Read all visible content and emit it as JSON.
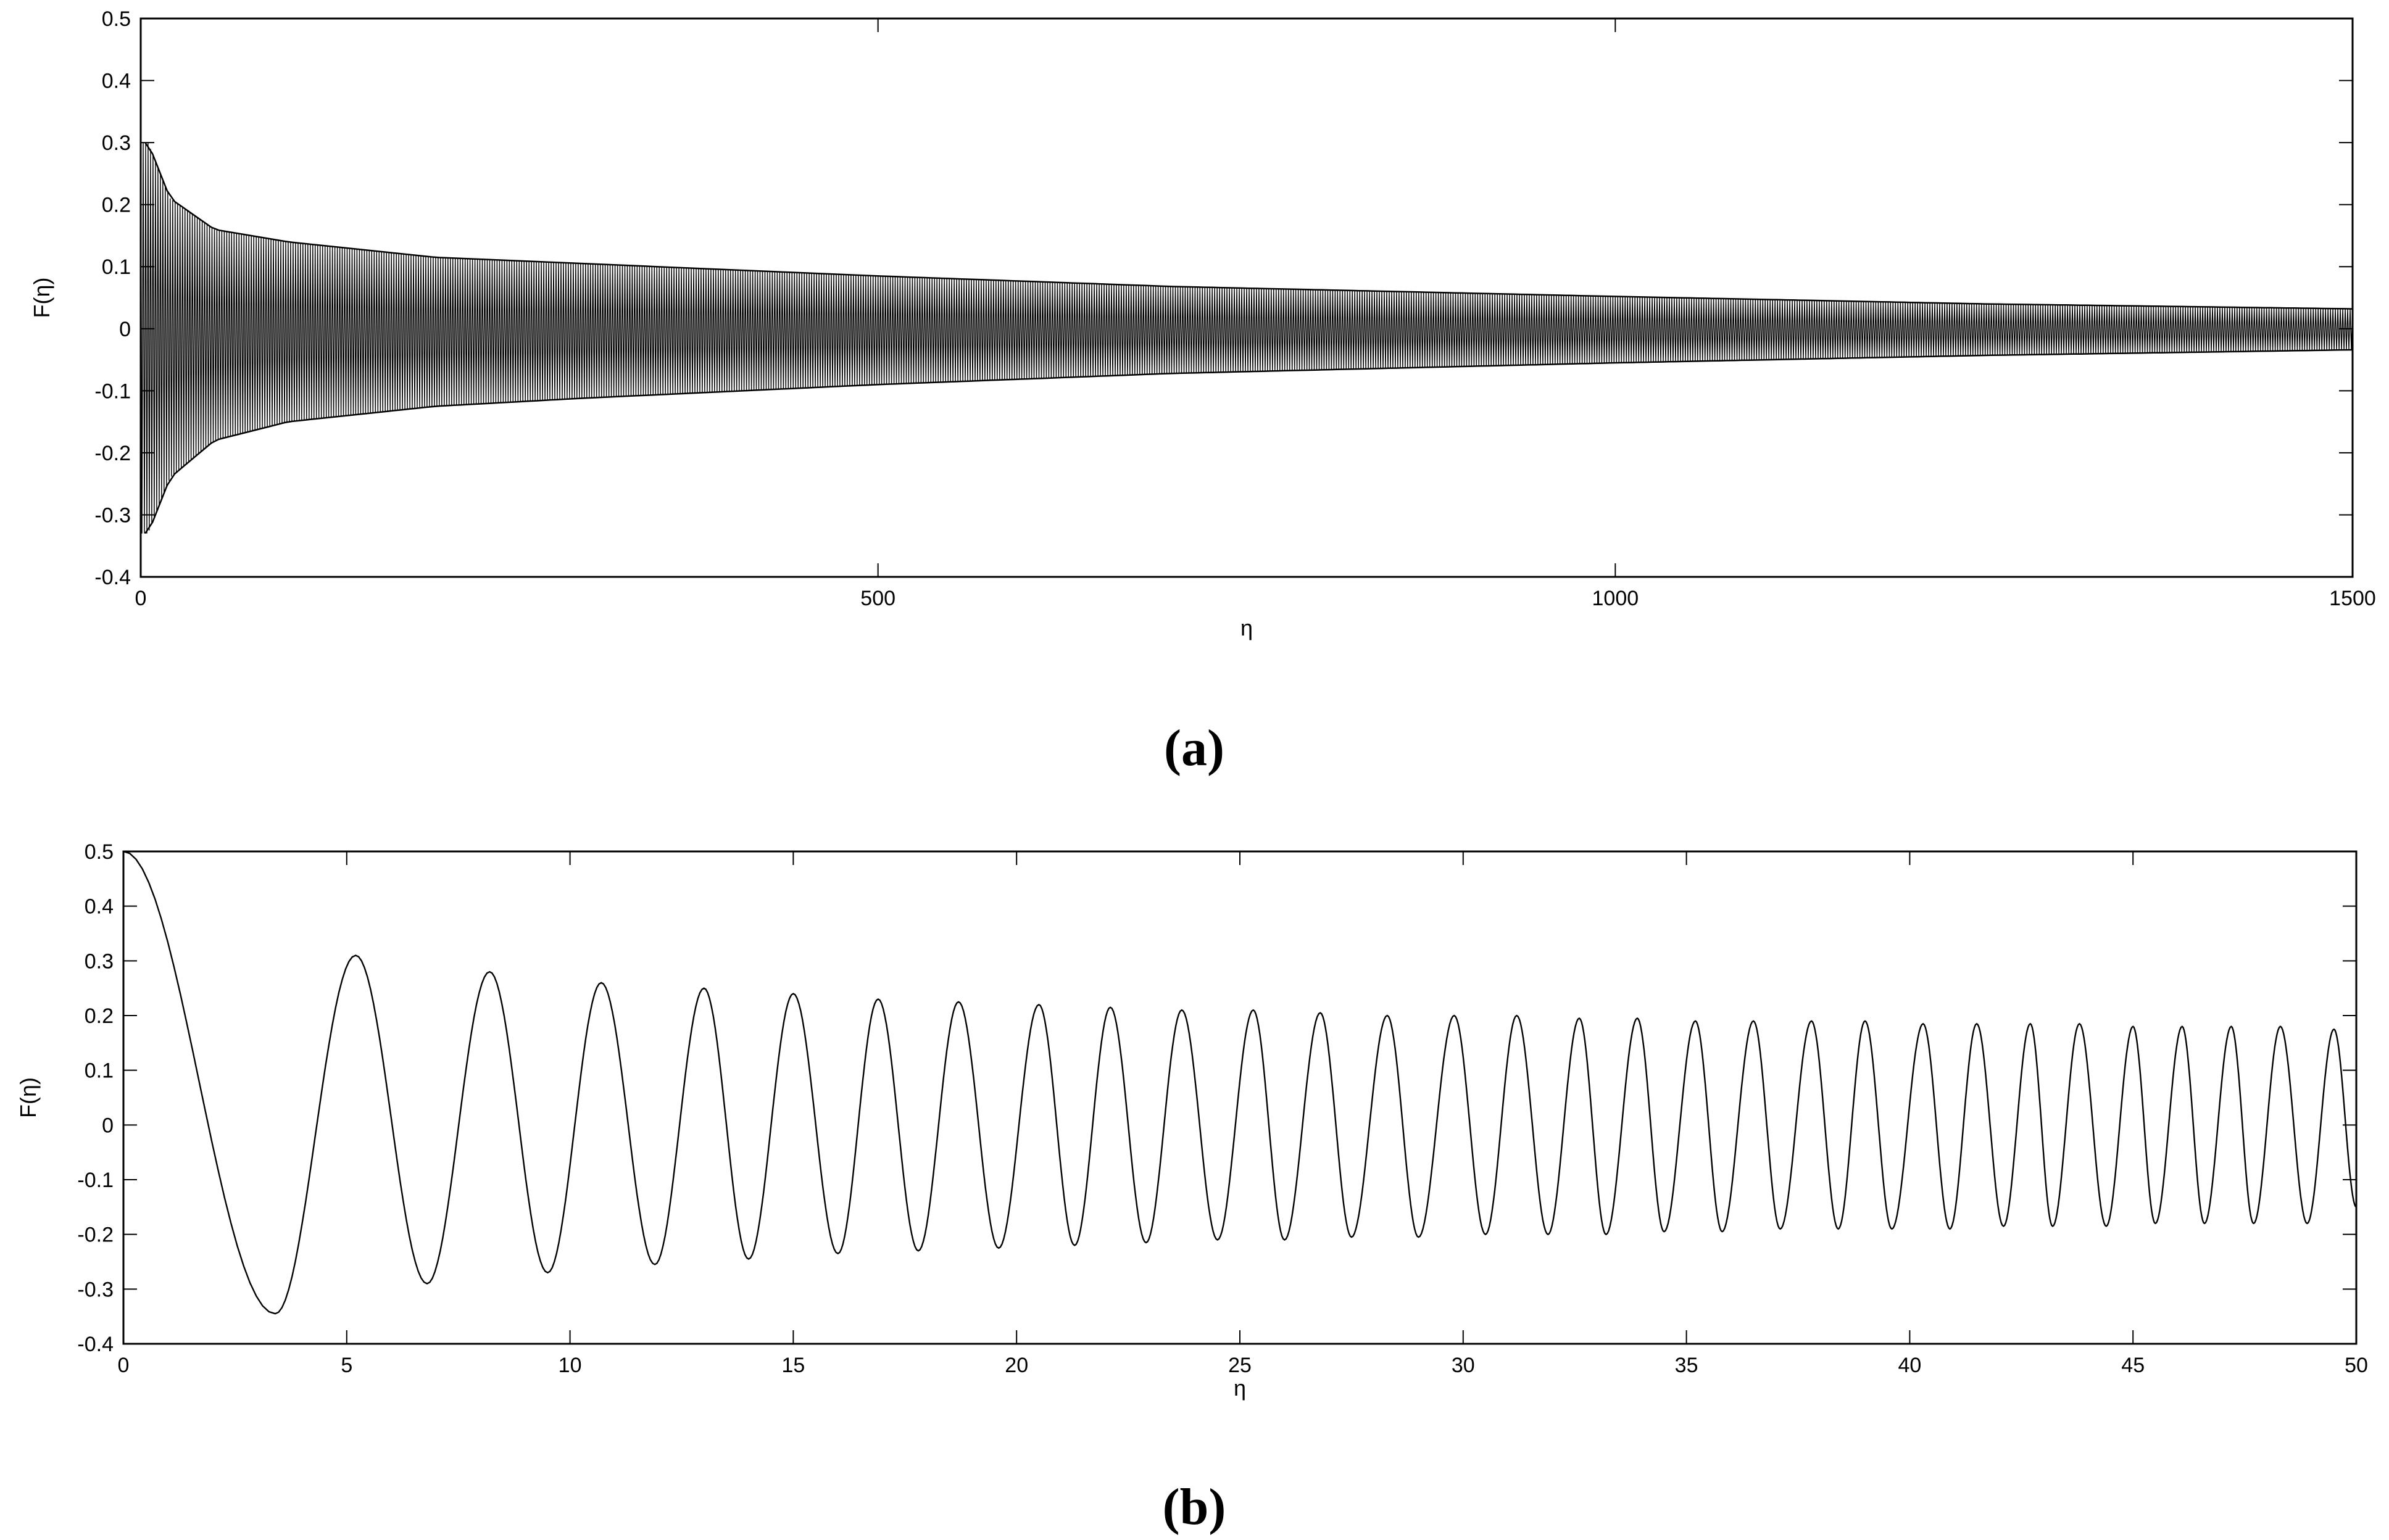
{
  "chart_data": [
    {
      "panel": "(a)",
      "type": "line",
      "xlabel": "η",
      "ylabel": "F(η)",
      "xlim": [
        0,
        1500
      ],
      "ylim": [
        -0.4,
        0.5
      ],
      "xticks": [
        "0",
        "500",
        "1000",
        "1500"
      ],
      "yticks": [
        "0.5",
        "0.4",
        "0.3",
        "0.2",
        "0.1",
        "0",
        "-0.1",
        "-0.2",
        "-0.3",
        "-0.4"
      ],
      "grid": false,
      "series": [
        {
          "description": "rapidly oscillating signal with decaying envelope",
          "start_value": 0.38,
          "envelope_upper": {
            "x": [
              5,
              20,
              50,
              100,
              200,
              300,
              500,
              700,
              1000,
              1250,
              1500
            ],
            "y": [
              0.3,
              0.21,
              0.16,
              0.14,
              0.115,
              0.105,
              0.085,
              0.068,
              0.052,
              0.04,
              0.032
            ]
          },
          "envelope_lower": {
            "x": [
              5,
              20,
              50,
              100,
              200,
              300,
              500,
              700,
              1000,
              1250,
              1500
            ],
            "y": [
              -0.33,
              -0.24,
              -0.18,
              -0.15,
              -0.125,
              -0.112,
              -0.09,
              -0.072,
              -0.055,
              -0.043,
              -0.034
            ]
          }
        }
      ]
    },
    {
      "panel": "(b)",
      "type": "line",
      "xlabel": "η",
      "ylabel": "F(η)",
      "xlim": [
        0,
        50
      ],
      "ylim": [
        -0.4,
        0.5
      ],
      "xticks": [
        "0",
        "5",
        "10",
        "15",
        "20",
        "25",
        "30",
        "35",
        "40",
        "45",
        "50"
      ],
      "yticks": [
        "0.5",
        "0.4",
        "0.3",
        "0.2",
        "0.1",
        "0",
        "-0.1",
        "-0.2",
        "-0.3",
        "-0.4"
      ],
      "grid": false,
      "series": [
        {
          "description": "decaying oscillation with increasing frequency",
          "start_value": 0.5,
          "maxima": {
            "x": [
              0,
              5.2,
              8.2,
              10.7,
              13.0,
              15.0,
              16.9,
              18.7,
              20.5,
              22.1,
              23.7,
              25.3,
              26.8,
              28.3,
              29.8,
              31.2,
              32.6,
              33.9,
              35.2,
              36.5,
              37.8,
              39.0,
              40.3,
              41.5,
              42.7,
              43.8,
              45.0,
              46.1,
              47.2,
              48.3,
              49.5
            ],
            "y": [
              0.5,
              0.31,
              0.28,
              0.26,
              0.25,
              0.24,
              0.23,
              0.225,
              0.22,
              0.215,
              0.21,
              0.21,
              0.205,
              0.2,
              0.2,
              0.2,
              0.195,
              0.195,
              0.19,
              0.19,
              0.19,
              0.19,
              0.185,
              0.185,
              0.185,
              0.185,
              0.18,
              0.18,
              0.18,
              0.18,
              0.175
            ]
          },
          "minima": {
            "x": [
              3.4,
              6.8,
              9.5,
              11.9,
              14.0,
              16.0,
              17.8,
              19.6,
              21.3,
              22.9,
              24.5,
              26.0,
              27.5,
              29.0,
              30.5,
              31.9,
              33.2,
              34.5,
              35.8,
              37.1,
              38.4,
              39.6,
              40.9,
              42.1,
              43.2,
              44.4,
              45.5,
              46.6,
              47.7,
              48.9,
              50.0
            ],
            "y": [
              -0.345,
              -0.29,
              -0.27,
              -0.255,
              -0.245,
              -0.235,
              -0.23,
              -0.225,
              -0.22,
              -0.215,
              -0.21,
              -0.21,
              -0.205,
              -0.205,
              -0.2,
              -0.2,
              -0.2,
              -0.195,
              -0.195,
              -0.19,
              -0.19,
              -0.19,
              -0.19,
              -0.185,
              -0.185,
              -0.185,
              -0.18,
              -0.18,
              -0.18,
              -0.18,
              -0.15
            ]
          }
        }
      ]
    }
  ]
}
